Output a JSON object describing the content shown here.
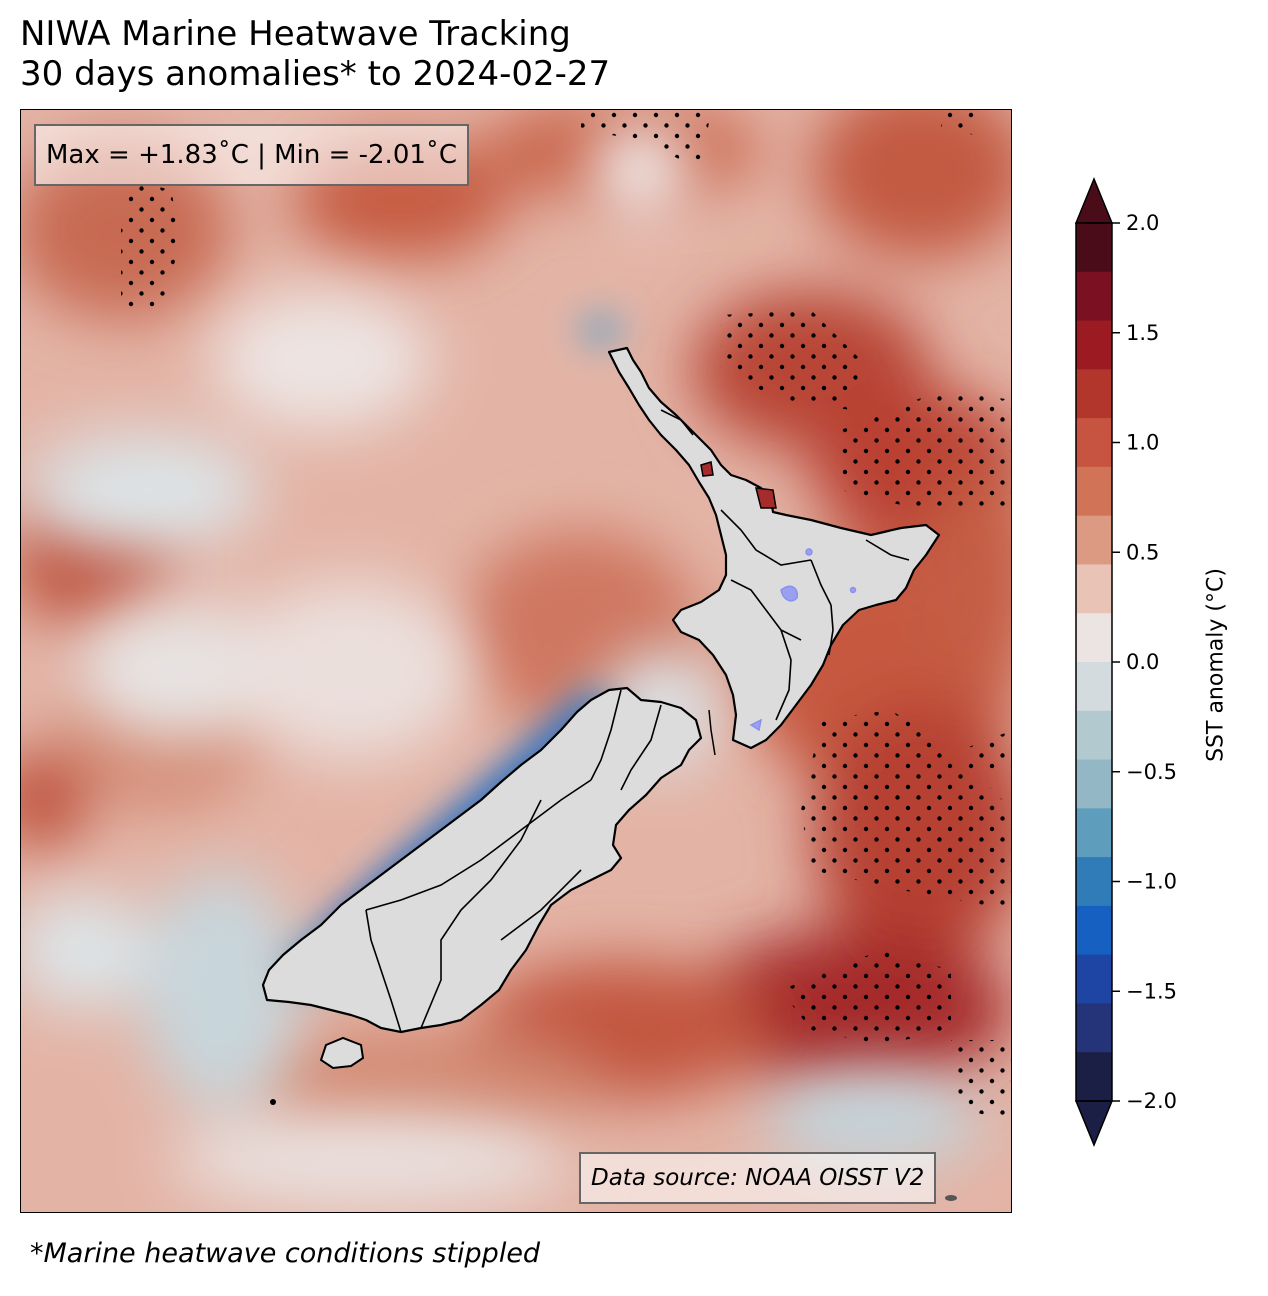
{
  "title": {
    "line1": "NIWA Marine Heatwave Tracking",
    "line2": "30 days anomalies* to 2024-02-27"
  },
  "stats_box": "Max = +1.83˚C | Min = -2.01˚C",
  "source_box": "Data source: NOAA OISST V2",
  "footnote": "*Marine heatwave conditions stippled",
  "colorbar": {
    "label": "SST anomaly (°C)",
    "min": -2.0,
    "max": 2.0,
    "ticks": [
      "2.0",
      "1.5",
      "1.0",
      "0.5",
      "0.0",
      "−0.5",
      "−1.0",
      "−1.5",
      "−2.0"
    ],
    "tick_values": [
      2.0,
      1.5,
      1.0,
      0.5,
      0.0,
      -0.5,
      -1.0,
      -1.5,
      -2.0
    ],
    "colors_top_to_bottom": [
      "#4b0c1a",
      "#7a1021",
      "#9c1b23",
      "#b3362c",
      "#c65440",
      "#d07356",
      "#dc9a83",
      "#e8c3b6",
      "#ece4e2",
      "#d3dbdf",
      "#b3c9d0",
      "#93b7c4",
      "#5e9dbc",
      "#2f7cb8",
      "#1560c0",
      "#1e45a4",
      "#253378",
      "#1b1f45"
    ]
  },
  "map": {
    "land_color": "#dcdcdc",
    "hot_color": "#c0553c",
    "cold_color": "#1560c0"
  }
}
